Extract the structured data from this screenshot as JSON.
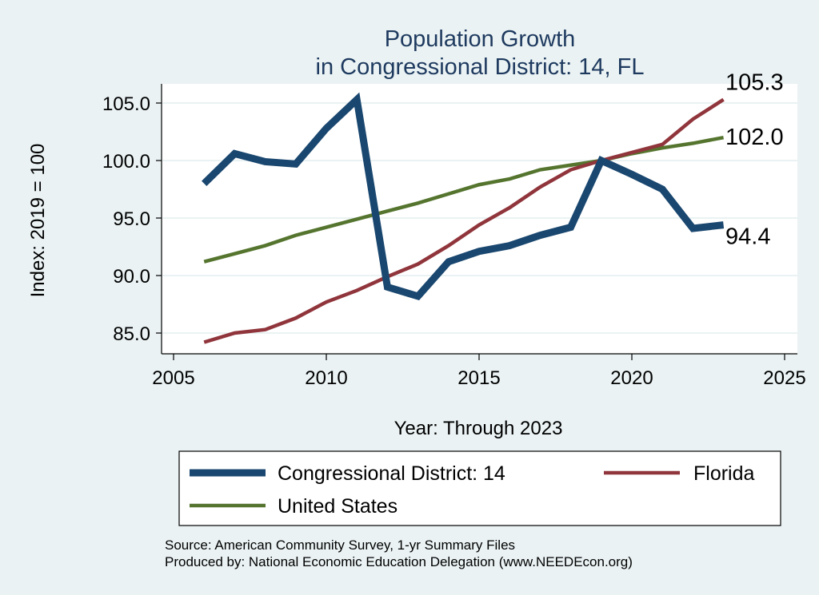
{
  "chart_data": {
    "type": "line",
    "title": "Population Growth",
    "subtitle": "in Congressional District: 14, FL",
    "xlabel": "Year: Through 2023",
    "ylabel": "Index: 2019 = 100",
    "xlim": [
      2005,
      2025
    ],
    "ylim": [
      84,
      106
    ],
    "xticks": [
      2005,
      2010,
      2015,
      2020,
      2025
    ],
    "yticks": [
      85,
      90,
      95,
      100,
      105
    ],
    "ytick_labels": [
      "85.0",
      "90.0",
      "95.0",
      "100.0",
      "105.0"
    ],
    "xtick_labels": [
      "2005",
      "2010",
      "2015",
      "2020",
      "2025"
    ],
    "grid": "horizontal",
    "legend_position": "bottom",
    "x": [
      2006,
      2007,
      2008,
      2009,
      2010,
      2011,
      2012,
      2013,
      2014,
      2015,
      2016,
      2017,
      2018,
      2019,
      2020,
      2021,
      2022,
      2023
    ],
    "series": [
      {
        "name": "Congressional District: 14",
        "color": "#1a476f",
        "values": [
          98.0,
          100.6,
          99.9,
          99.7,
          102.8,
          105.3,
          89.0,
          88.2,
          91.2,
          92.1,
          92.6,
          93.5,
          94.2,
          100.0,
          98.8,
          97.5,
          94.1,
          94.4
        ],
        "end_label": "94.4"
      },
      {
        "name": "Florida",
        "color": "#90353b",
        "values": [
          84.2,
          85.0,
          85.3,
          86.3,
          87.7,
          88.7,
          89.9,
          91.0,
          92.6,
          94.4,
          95.9,
          97.7,
          99.2,
          100.0,
          100.7,
          101.4,
          103.6,
          105.3
        ],
        "end_label": "105.3"
      },
      {
        "name": "United States",
        "color": "#55752f",
        "values": [
          91.2,
          91.9,
          92.6,
          93.5,
          94.2,
          94.9,
          95.6,
          96.3,
          97.1,
          97.9,
          98.4,
          99.2,
          99.6,
          100.0,
          100.6,
          101.1,
          101.5,
          102.0
        ],
        "end_label": "102.0"
      }
    ]
  },
  "footer": {
    "source": "Source: American Community Survey, 1-yr Summary Files",
    "producer": "Produced by: National Economic Education Delegation (www.NEEDEcon.org)"
  }
}
